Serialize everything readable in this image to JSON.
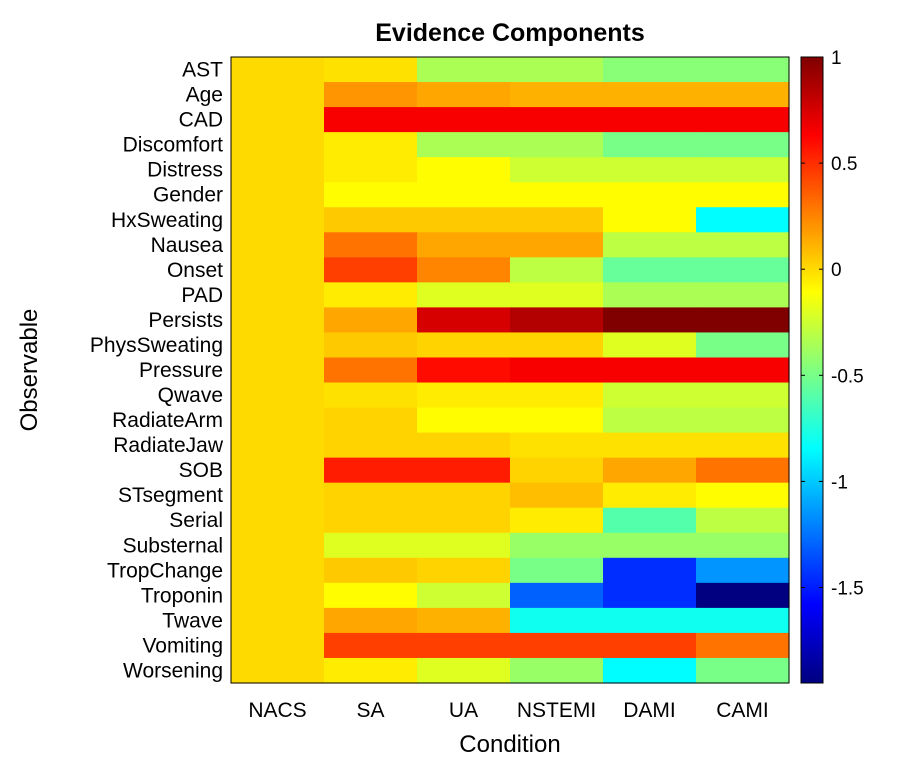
{
  "chart_data": {
    "type": "heatmap",
    "title": "Evidence Components",
    "xlabel": "Condition",
    "ylabel": "Observable",
    "x_categories": [
      "NACS",
      "SA",
      "UA",
      "NSTEMI",
      "DAMI",
      "CAMI"
    ],
    "y_categories": [
      "AST",
      "Age",
      "CAD",
      "Discomfort",
      "Distress",
      "Gender",
      "HxSweating",
      "Nausea",
      "Onset",
      "PAD",
      "Persists",
      "PhysSweating",
      "Pressure",
      "Qwave",
      "RadiateArm",
      "RadiateJaw",
      "SOB",
      "STsegment",
      "Serial",
      "Substernal",
      "TropChange",
      "Troponin",
      "Twave",
      "Vomiting",
      "Worsening"
    ],
    "values": [
      [
        0,
        -0.02,
        -0.35,
        -0.35,
        -0.45,
        -0.45
      ],
      [
        0,
        0.2,
        0.15,
        0.12,
        0.12,
        0.12
      ],
      [
        0,
        0.65,
        0.65,
        0.65,
        0.65,
        0.65
      ],
      [
        0,
        -0.05,
        -0.35,
        -0.35,
        -0.5,
        -0.5
      ],
      [
        0,
        -0.05,
        -0.1,
        -0.25,
        -0.25,
        -0.25
      ],
      [
        0,
        -0.1,
        -0.1,
        -0.1,
        -0.1,
        -0.1
      ],
      [
        0,
        0.05,
        0.05,
        0.05,
        -0.1,
        -0.85
      ],
      [
        0,
        0.3,
        0.15,
        0.15,
        -0.3,
        -0.3
      ],
      [
        0,
        0.45,
        0.25,
        -0.3,
        -0.55,
        -0.55
      ],
      [
        0,
        -0.05,
        -0.2,
        -0.2,
        -0.35,
        -0.35
      ],
      [
        0,
        0.15,
        0.75,
        0.85,
        1.0,
        1.0
      ],
      [
        0,
        0.05,
        0.02,
        0.02,
        -0.2,
        -0.5
      ],
      [
        0,
        0.3,
        0.6,
        0.65,
        0.65,
        0.65
      ],
      [
        0,
        -0.02,
        -0.05,
        -0.05,
        -0.25,
        -0.25
      ],
      [
        0,
        0.02,
        -0.1,
        -0.1,
        -0.3,
        -0.3
      ],
      [
        0,
        0.02,
        0.02,
        -0.02,
        -0.02,
        -0.02
      ],
      [
        0,
        0.55,
        0.55,
        0.02,
        0.15,
        0.3
      ],
      [
        0,
        0.02,
        0.02,
        0.08,
        -0.05,
        -0.1
      ],
      [
        0,
        0.02,
        0.02,
        -0.05,
        -0.6,
        -0.3
      ],
      [
        0,
        -0.2,
        -0.2,
        -0.4,
        -0.4,
        -0.4
      ],
      [
        0,
        0.05,
        0.02,
        -0.5,
        -1.45,
        -1.15
      ],
      [
        0,
        -0.1,
        -0.25,
        -1.3,
        -1.45,
        -1.95
      ],
      [
        0,
        0.15,
        0.12,
        -0.8,
        -0.8,
        -0.8
      ],
      [
        0,
        0.45,
        0.45,
        0.45,
        0.45,
        0.3
      ],
      [
        0,
        -0.05,
        -0.2,
        -0.4,
        -0.85,
        -0.5
      ]
    ],
    "colormap": "jet",
    "clim": [
      -1.95,
      1.0
    ],
    "colorbar_ticks": [
      "1",
      "0.5",
      "0",
      "-0.5",
      "-1",
      "-1.5"
    ],
    "grid": false,
    "colorbar_position": "right"
  }
}
